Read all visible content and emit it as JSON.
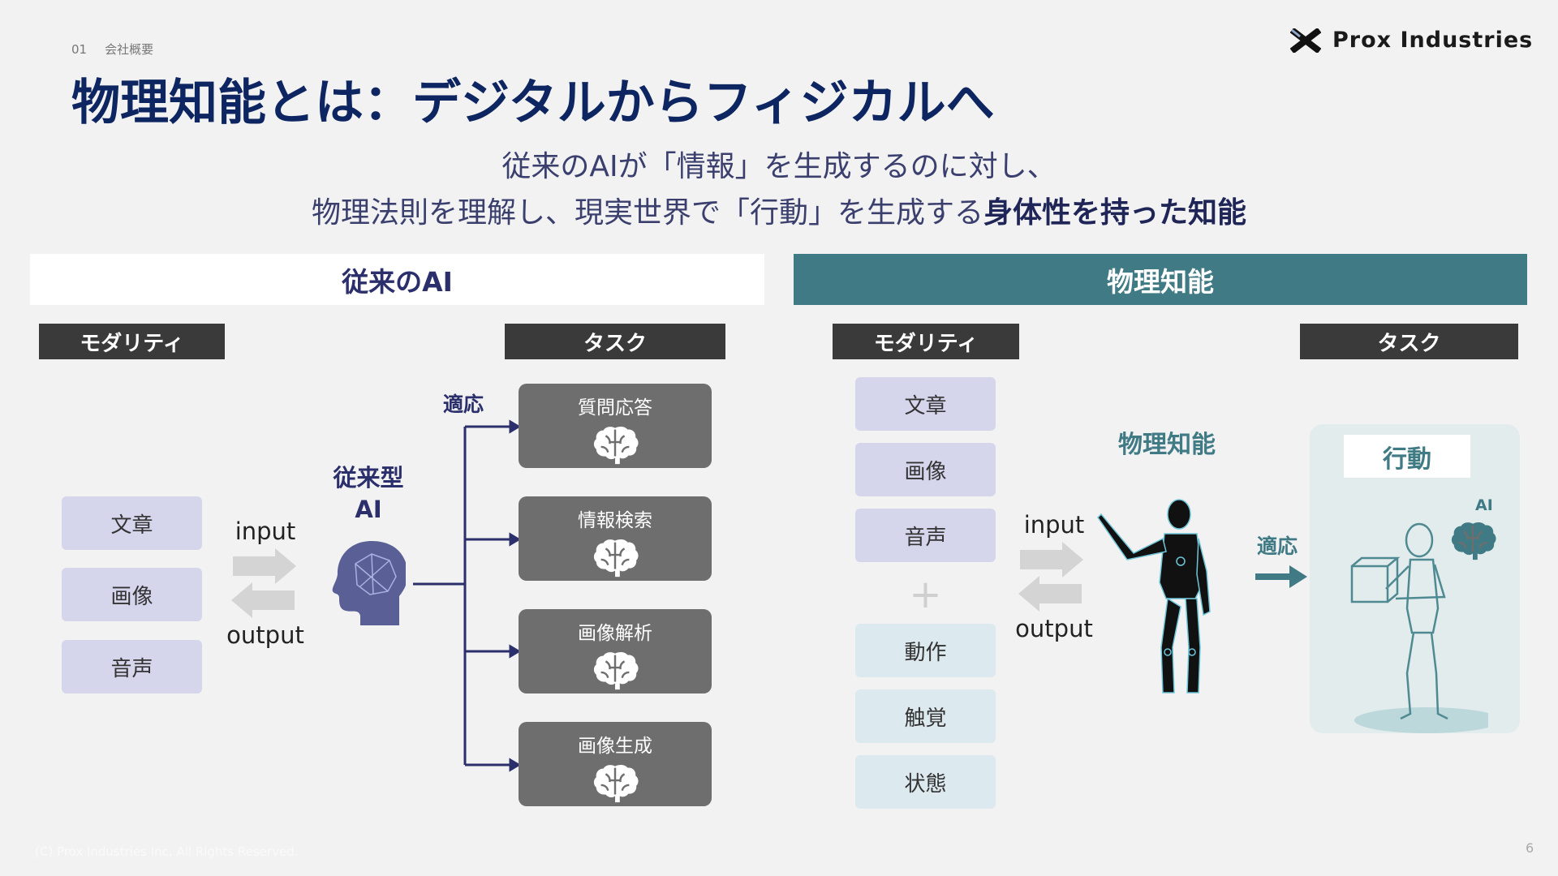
{
  "header": {
    "section_number": "01",
    "section_label": "会社概要",
    "brand": "Prox Industries",
    "title": "物理知能とは：デジタルからフィジカルへ",
    "subtitle_line1": "従来のAIが「情報」を生成するのに対し、",
    "subtitle_line2_plain": "物理法則を理解し、現実世界で「行動」を生成する",
    "subtitle_line2_bold": "身体性を持った知能"
  },
  "left": {
    "heading": "従来のAI",
    "modality_label": "モダリティ",
    "task_label": "タスク",
    "modalities": [
      "文章",
      "画像",
      "音声"
    ],
    "input": "input",
    "output": "output",
    "model_line1": "従来型",
    "model_line2": "AI",
    "adapt": "適応",
    "tasks": [
      "質問応答",
      "情報検索",
      "画像解析",
      "画像生成"
    ]
  },
  "right": {
    "heading": "物理知能",
    "modality_label": "モダリティ",
    "task_label": "タスク",
    "modalities": [
      "文章",
      "画像",
      "音声"
    ],
    "plus": "+",
    "extra_modalities": [
      "動作",
      "触覚",
      "状態"
    ],
    "input": "input",
    "output": "output",
    "model": "物理知能",
    "adapt": "適応",
    "action": "行動",
    "ai_badge": "AI"
  },
  "footer": {
    "copyright": "(C) Prox Industries Inc. All Rights Reserved.",
    "page": "6"
  },
  "colors": {
    "navy": "#0d2560",
    "teal": "#3f7a85",
    "label_dark": "#3a3a3a",
    "lavender": "#d5d6ec",
    "light_blue": "#dce9ee",
    "task_gray": "#6e6e6e"
  }
}
